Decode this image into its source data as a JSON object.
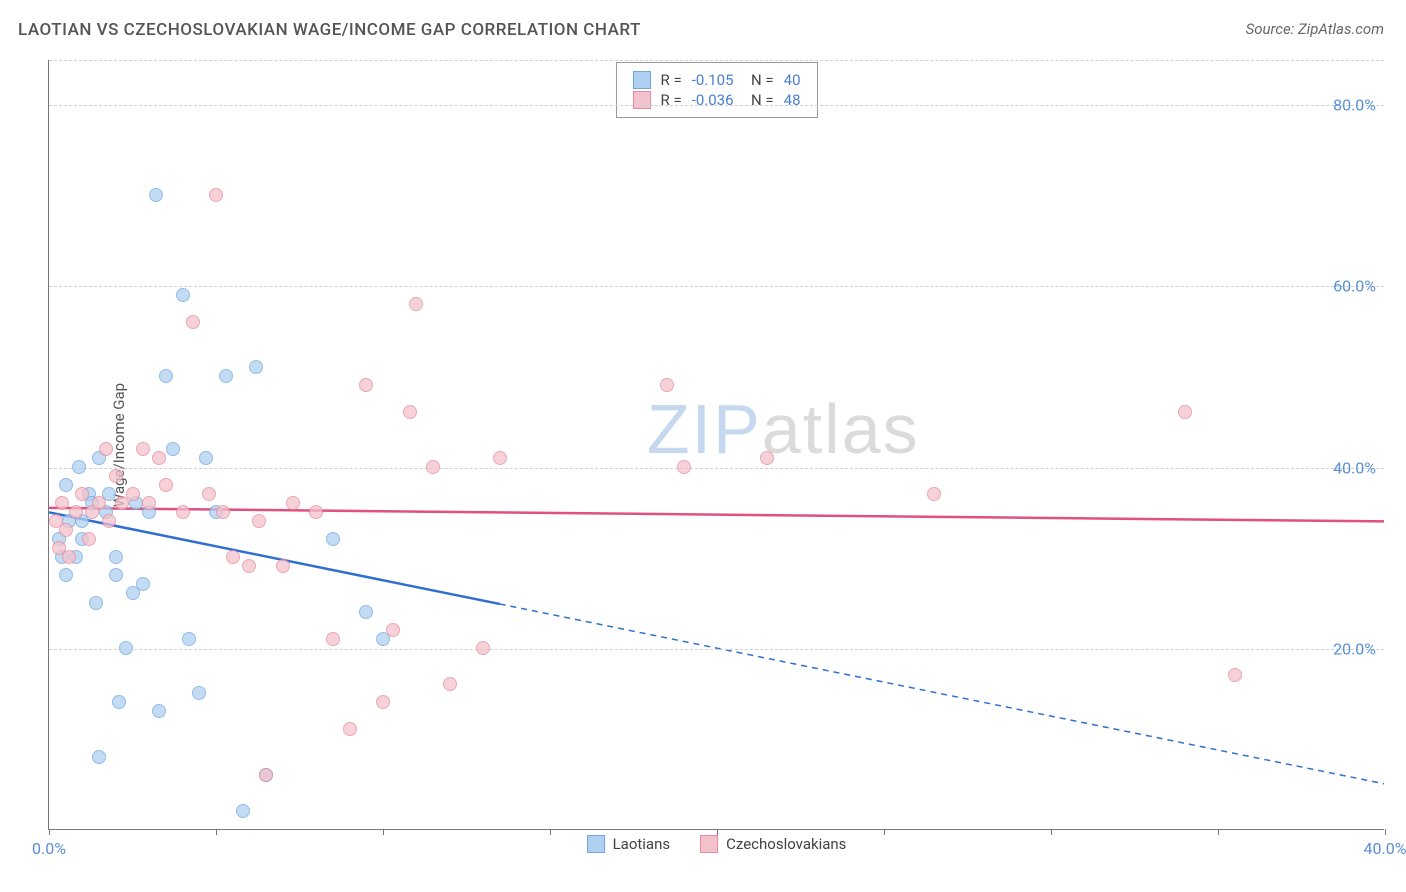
{
  "title": "LAOTIAN VS CZECHOSLOVAKIAN WAGE/INCOME GAP CORRELATION CHART",
  "source": "Source: ZipAtlas.com",
  "ylabel": "Wage/Income Gap",
  "watermark_zip": "ZIP",
  "watermark_atlas": "atlas",
  "chart": {
    "type": "scatter",
    "xlim": [
      0,
      40
    ],
    "ylim": [
      0,
      85
    ],
    "xticks": [
      0,
      5,
      10,
      15,
      20,
      25,
      30,
      35,
      40
    ],
    "xtick_labels": {
      "0": "0.0%",
      "40": "40.0%"
    },
    "ygrids": [
      20,
      40,
      60,
      80
    ],
    "ytick_labels": {
      "20": "20.0%",
      "40": "40.0%",
      "60": "60.0%",
      "80": "80.0%"
    },
    "background_color": "#ffffff",
    "grid_color": "#d0d0d0",
    "axis_color": "#777777",
    "tick_label_color": "#5a8fd6",
    "series": [
      {
        "name": "Laotians",
        "fill": "#afd0f0",
        "stroke": "#6fa8e0",
        "opacity": 0.75,
        "marker_radius": 7,
        "trend": {
          "x1": 0,
          "y1": 35,
          "x2": 40,
          "y2": 5,
          "solid_until_x": 13.5,
          "color": "#2f6fd0",
          "width": 2.5
        },
        "R": "-0.105",
        "N": "40",
        "points": [
          [
            0.3,
            32
          ],
          [
            0.4,
            30
          ],
          [
            0.5,
            28
          ],
          [
            0.5,
            38
          ],
          [
            0.6,
            34
          ],
          [
            0.8,
            30
          ],
          [
            0.9,
            40
          ],
          [
            1.0,
            34
          ],
          [
            1.0,
            32
          ],
          [
            1.2,
            37
          ],
          [
            1.3,
            36
          ],
          [
            1.4,
            25
          ],
          [
            1.5,
            41
          ],
          [
            1.5,
            8
          ],
          [
            1.7,
            35
          ],
          [
            1.8,
            37
          ],
          [
            2.0,
            28
          ],
          [
            2.0,
            30
          ],
          [
            2.1,
            14
          ],
          [
            2.3,
            20
          ],
          [
            2.5,
            26
          ],
          [
            2.6,
            36
          ],
          [
            2.8,
            27
          ],
          [
            3.0,
            35
          ],
          [
            3.2,
            70
          ],
          [
            3.3,
            13
          ],
          [
            3.5,
            50
          ],
          [
            3.7,
            42
          ],
          [
            4.0,
            59
          ],
          [
            4.2,
            21
          ],
          [
            4.5,
            15
          ],
          [
            4.7,
            41
          ],
          [
            5.0,
            35
          ],
          [
            5.3,
            50
          ],
          [
            5.8,
            2
          ],
          [
            6.2,
            51
          ],
          [
            6.5,
            6
          ],
          [
            8.5,
            32
          ],
          [
            9.5,
            24
          ],
          [
            10.0,
            21
          ]
        ]
      },
      {
        "name": "Czechoslovakians",
        "fill": "#f4c2cc",
        "stroke": "#e88aa0",
        "opacity": 0.75,
        "marker_radius": 7,
        "trend": {
          "x1": 0,
          "y1": 35.5,
          "x2": 40,
          "y2": 34,
          "solid_until_x": 40,
          "color": "#e05080",
          "width": 2.5
        },
        "R": "-0.036",
        "N": "48",
        "points": [
          [
            0.2,
            34
          ],
          [
            0.3,
            31
          ],
          [
            0.4,
            36
          ],
          [
            0.5,
            33
          ],
          [
            0.6,
            30
          ],
          [
            0.8,
            35
          ],
          [
            1.0,
            37
          ],
          [
            1.2,
            32
          ],
          [
            1.3,
            35
          ],
          [
            1.5,
            36
          ],
          [
            1.7,
            42
          ],
          [
            1.8,
            34
          ],
          [
            2.0,
            39
          ],
          [
            2.2,
            36
          ],
          [
            2.5,
            37
          ],
          [
            2.8,
            42
          ],
          [
            3.0,
            36
          ],
          [
            3.3,
            41
          ],
          [
            3.5,
            38
          ],
          [
            4.0,
            35
          ],
          [
            4.3,
            56
          ],
          [
            4.8,
            37
          ],
          [
            5.0,
            70
          ],
          [
            5.2,
            35
          ],
          [
            5.5,
            30
          ],
          [
            6.0,
            29
          ],
          [
            6.3,
            34
          ],
          [
            6.5,
            6
          ],
          [
            7.0,
            29
          ],
          [
            7.3,
            36
          ],
          [
            8.0,
            35
          ],
          [
            8.5,
            21
          ],
          [
            9.0,
            11
          ],
          [
            9.5,
            49
          ],
          [
            10.0,
            14
          ],
          [
            10.3,
            22
          ],
          [
            10.8,
            46
          ],
          [
            11.0,
            58
          ],
          [
            11.5,
            40
          ],
          [
            12.0,
            16
          ],
          [
            13.0,
            20
          ],
          [
            13.5,
            41
          ],
          [
            18.5,
            49
          ],
          [
            19.0,
            40
          ],
          [
            21.5,
            41
          ],
          [
            26.5,
            37
          ],
          [
            34.0,
            46
          ],
          [
            35.5,
            17
          ]
        ]
      }
    ]
  }
}
